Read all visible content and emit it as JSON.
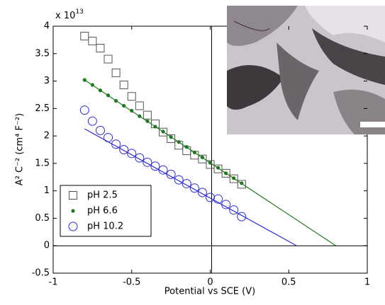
{
  "chart_data": {
    "type": "scatter",
    "xlabel": "Potential vs SCE (V)",
    "ylabel": "A² C⁻² (cm⁴ F⁻²)",
    "y_multiplier": {
      "base": "x 10",
      "exponent": "13"
    },
    "xlim": [
      -1,
      1
    ],
    "xticks": [
      -1,
      -0.5,
      0,
      0.5,
      1
    ],
    "ylim": [
      -0.5,
      4
    ],
    "yticks": [
      -0.5,
      0,
      0.5,
      1,
      1.5,
      2,
      2.5,
      3,
      3.5,
      4
    ],
    "legend": "lower left",
    "series": [
      {
        "name": "pH 2.5",
        "color": "#555555",
        "marker": "square",
        "x": [
          -0.8,
          -0.75,
          -0.7,
          -0.65,
          -0.6,
          -0.55,
          -0.5,
          -0.45,
          -0.4,
          -0.35,
          -0.3,
          -0.25,
          -0.2,
          -0.15,
          -0.1,
          -0.05,
          0,
          0.05,
          0.1,
          0.15,
          0.2
        ],
        "values": [
          3.82,
          3.73,
          3.6,
          3.4,
          3.15,
          2.93,
          2.72,
          2.55,
          2.38,
          2.22,
          2.07,
          1.95,
          1.83,
          1.73,
          1.65,
          1.58,
          1.48,
          1.4,
          1.32,
          1.22,
          1.12
        ]
      },
      {
        "name": "pH 6.6",
        "color": "#1f7a1f",
        "marker": "dot",
        "x": [
          -0.8,
          -0.75,
          -0.7,
          -0.65,
          -0.6,
          -0.55,
          -0.5,
          -0.45,
          -0.4,
          -0.35,
          -0.3,
          -0.25,
          -0.2,
          -0.15,
          -0.1,
          -0.05,
          0,
          0.05,
          0.1,
          0.15,
          0.2
        ],
        "values": [
          3.02,
          2.93,
          2.83,
          2.74,
          2.64,
          2.55,
          2.46,
          2.36,
          2.27,
          2.17,
          2.08,
          1.98,
          1.89,
          1.8,
          1.7,
          1.61,
          1.51,
          1.42,
          1.32,
          1.23,
          1.14
        ]
      },
      {
        "name": "pH 10.2",
        "color": "#2b2bd9",
        "marker": "circle",
        "x": [
          -0.8,
          -0.75,
          -0.7,
          -0.65,
          -0.6,
          -0.55,
          -0.5,
          -0.45,
          -0.4,
          -0.35,
          -0.3,
          -0.25,
          -0.2,
          -0.15,
          -0.1,
          -0.05,
          0,
          0.05,
          0.1,
          0.15,
          0.2
        ],
        "values": [
          2.47,
          2.27,
          2.1,
          1.97,
          1.85,
          1.75,
          1.68,
          1.6,
          1.52,
          1.45,
          1.38,
          1.3,
          1.2,
          1.13,
          1.05,
          0.97,
          0.88,
          0.85,
          0.75,
          0.65,
          0.53
        ]
      },
      {
        "color": "#1f7a1f",
        "marker": "line",
        "x": [
          -0.8,
          0.8
        ],
        "values": [
          3.02,
          0
        ]
      },
      {
        "color": "#2b2bd9",
        "marker": "line",
        "x": [
          -0.8,
          0.55
        ],
        "values": [
          2.13,
          0
        ]
      }
    ]
  }
}
